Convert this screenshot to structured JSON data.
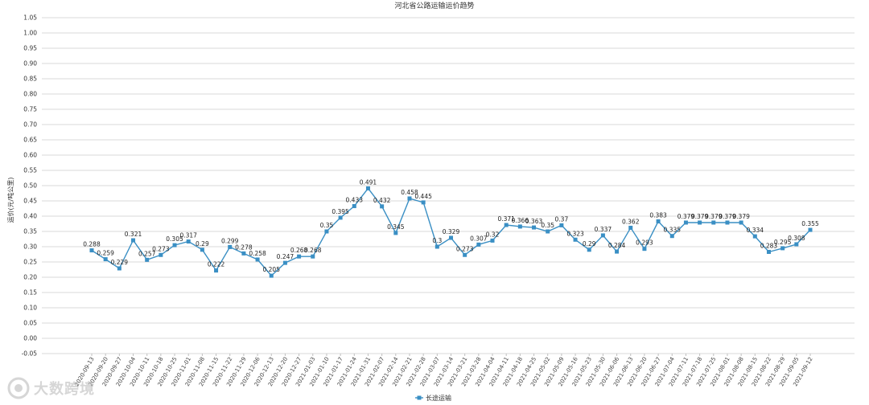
{
  "chart_data": {
    "type": "line",
    "title": "河北省公路运输运价趋势",
    "ylabel": "运价(元/吨公里)",
    "xlabel": "",
    "ylim": [
      -0.05,
      1.05
    ],
    "yticks": [
      "1.05",
      "1.00",
      "0.95",
      "0.90",
      "0.85",
      "0.80",
      "0.75",
      "0.70",
      "0.65",
      "0.60",
      "0.55",
      "0.50",
      "0.45",
      "0.40",
      "0.35",
      "0.30",
      "0.25",
      "0.20",
      "0.15",
      "0.10",
      "0.05",
      "0.00",
      "-0.05"
    ],
    "grid": true,
    "legend_position": "bottom",
    "categories": [
      "2020-09-13",
      "2020-09-20",
      "2020-09-27",
      "2020-10-04",
      "2020-10-11",
      "2020-10-18",
      "2020-10-25",
      "2020-11-01",
      "2020-11-08",
      "2020-11-15",
      "2020-11-22",
      "2020-11-29",
      "2020-12-06",
      "2020-12-13",
      "2020-12-20",
      "2020-12-27",
      "2021-01-03",
      "2021-01-10",
      "2021-01-17",
      "2021-01-24",
      "2021-01-31",
      "2021-02-07",
      "2021-02-14",
      "2021-02-21",
      "2021-02-28",
      "2021-03-07",
      "2021-03-14",
      "2021-03-21",
      "2021-03-28",
      "2021-04-04",
      "2021-04-11",
      "2021-04-18",
      "2021-04-25",
      "2021-05-02",
      "2021-05-09",
      "2021-05-16",
      "2021-05-23",
      "2021-05-30",
      "2021-06-06",
      "2021-06-13",
      "2021-06-20",
      "2021-06-27",
      "2021-07-04",
      "2021-07-11",
      "2021-07-18",
      "2021-07-25",
      "2021-08-01",
      "2021-08-08",
      "2021-08-15",
      "2021-08-22",
      "2021-08-29",
      "2021-09-05",
      "2021-09-12"
    ],
    "series": [
      {
        "name": "长途运输",
        "color": "#3a8fc4",
        "values": [
          0.288,
          0.259,
          0.229,
          0.321,
          0.257,
          0.273,
          0.305,
          0.317,
          0.29,
          0.222,
          0.299,
          0.278,
          0.258,
          0.205,
          0.247,
          0.268,
          0.268,
          0.35,
          0.395,
          0.433,
          0.491,
          0.432,
          0.345,
          0.458,
          0.445,
          0.3,
          0.329,
          0.273,
          0.307,
          0.32,
          0.371,
          0.366,
          0.363,
          0.35,
          0.37,
          0.323,
          0.29,
          0.337,
          0.284,
          0.362,
          0.293,
          0.383,
          0.335,
          0.379,
          0.379,
          0.379,
          0.379,
          0.379,
          0.334,
          0.283,
          0.295,
          0.308,
          0.355
        ],
        "labels": [
          "0.288",
          "0.259",
          "0.229",
          "0.321",
          "0.257",
          "0.273",
          "0.305",
          "0.317",
          "0.29",
          "0.222",
          "0.299",
          "0.278",
          "0.258",
          "0.205",
          "0.247",
          "0.268",
          "0.268",
          "0.35",
          "0.395",
          "0.433",
          "0.491",
          "0.432",
          "0.345",
          "0.458",
          "0.445",
          "0.3",
          "0.329",
          "0.273",
          "0.307",
          "0.32",
          "0.371",
          "0.366",
          "0.363",
          "0.35",
          "0.37",
          "0.323",
          "0.29",
          "0.337",
          "0.284",
          "0.362",
          "0.293",
          "0.383",
          "0.335",
          "0.379",
          "0.379",
          "0.379",
          "0.379",
          "0.379",
          "0.334",
          "0.283",
          "0.295",
          "0.308",
          "0.355"
        ]
      }
    ]
  },
  "watermark": {
    "text": "大数跨境"
  }
}
